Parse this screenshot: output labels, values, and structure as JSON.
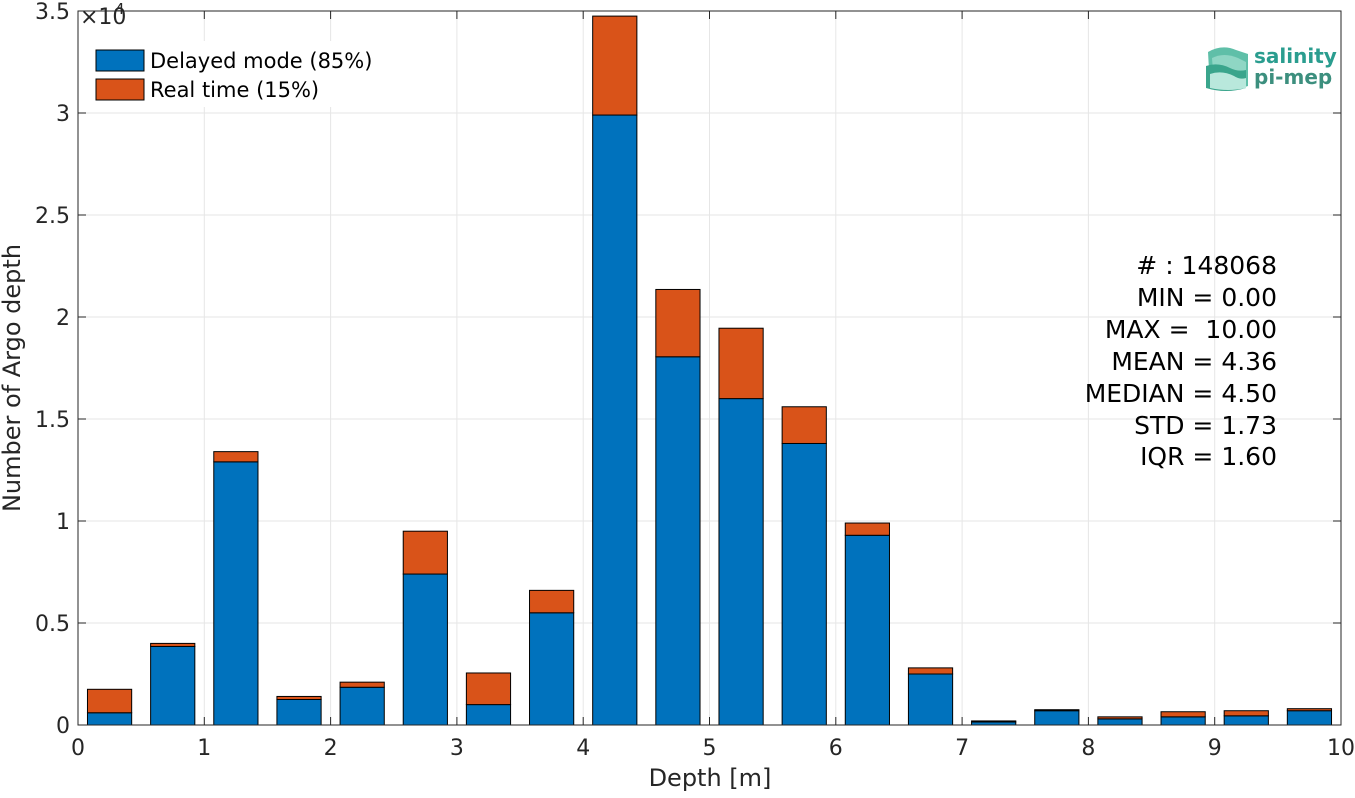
{
  "chart_data": {
    "type": "bar",
    "stacked": true,
    "xlabel": "Depth [m]",
    "ylabel": "Number of Argo depth",
    "y_exponent_label": "×10",
    "y_exponent_power": "4",
    "xlim": [
      0,
      10
    ],
    "ylim": [
      0,
      35000
    ],
    "xticks": [
      0,
      1,
      2,
      3,
      4,
      5,
      6,
      7,
      8,
      9,
      10
    ],
    "xtick_labels": [
      "0",
      "1",
      "2",
      "3",
      "4",
      "5",
      "6",
      "7",
      "8",
      "9",
      "10"
    ],
    "yticks": [
      0,
      5000,
      10000,
      15000,
      20000,
      25000,
      30000,
      35000
    ],
    "ytick_labels": [
      "0",
      "0.5",
      "1",
      "1.5",
      "2",
      "2.5",
      "3",
      "3.5"
    ],
    "grid": true,
    "legend_position": "top-left",
    "bar_width": 0.35,
    "x": [
      0.25,
      0.75,
      1.25,
      1.75,
      2.25,
      2.75,
      3.25,
      3.75,
      4.25,
      4.75,
      5.25,
      5.75,
      6.25,
      6.75,
      7.25,
      7.75,
      8.25,
      8.75,
      9.25,
      9.75
    ],
    "series": [
      {
        "name": "Delayed mode (85%)",
        "color": "#0072BD",
        "values": [
          600,
          3850,
          12900,
          1250,
          1850,
          7400,
          1000,
          5500,
          29900,
          18050,
          16000,
          13800,
          9300,
          2500,
          150,
          700,
          300,
          400,
          450,
          700
        ]
      },
      {
        "name": "Real time (15%)",
        "color": "#D95319",
        "values": [
          1150,
          150,
          500,
          150,
          250,
          2100,
          1550,
          1100,
          4850,
          3300,
          3450,
          1800,
          600,
          300,
          50,
          50,
          100,
          250,
          250,
          100
        ]
      }
    ],
    "stats": [
      "# : 148068",
      "MIN = 0.00",
      "MAX =  10.00",
      "MEAN = 4.36",
      "MEDIAN = 4.50",
      "STD = 1.73",
      "IQR = 1.60"
    ]
  },
  "logo": {
    "line1": "salinity",
    "line2": "pi-mep"
  }
}
